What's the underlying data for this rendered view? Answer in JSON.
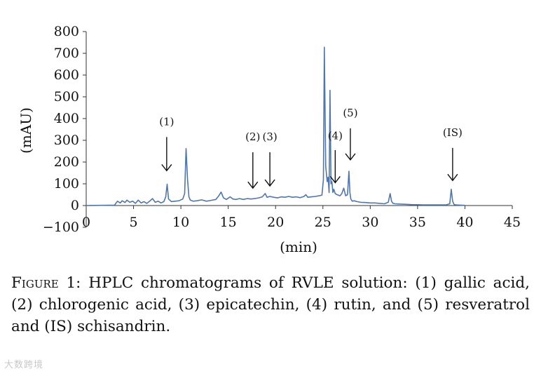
{
  "chart_data": {
    "type": "line",
    "ylabel": "(mAU)",
    "xlabel": "(min)",
    "xlim": [
      0,
      45
    ],
    "ylim": [
      -100,
      800
    ],
    "x_ticks": [
      0,
      5,
      10,
      15,
      20,
      25,
      30,
      35,
      40,
      45
    ],
    "y_ticks": [
      800,
      700,
      600,
      500,
      400,
      300,
      200,
      100,
      0,
      -100
    ],
    "y_tick_labels": [
      "800",
      "700",
      "600",
      "500",
      "400",
      "300",
      "200",
      "100",
      "0",
      "−100"
    ],
    "grid": false,
    "series": [
      {
        "color": "#4f76ad",
        "x": [
          0,
          3.0,
          3.3,
          3.6,
          3.8,
          4.1,
          4.3,
          4.6,
          4.9,
          5.2,
          5.5,
          5.8,
          6.1,
          6.4,
          6.7,
          7.0,
          7.3,
          7.6,
          7.9,
          8.2,
          8.4,
          8.55,
          8.7,
          9.0,
          9.4,
          9.8,
          10.2,
          10.4,
          10.55,
          10.7,
          10.85,
          11.0,
          11.3,
          11.7,
          12.2,
          12.7,
          13.2,
          13.7,
          14.0,
          14.25,
          14.5,
          14.8,
          15.2,
          15.5,
          15.8,
          16.2,
          16.6,
          17.0,
          17.4,
          17.8,
          18.2,
          18.6,
          18.9,
          19.1,
          19.4,
          19.8,
          20.2,
          20.6,
          21.0,
          21.4,
          21.8,
          22.2,
          22.6,
          23.0,
          23.2,
          23.4,
          23.8,
          24.2,
          24.6,
          24.9,
          25.05,
          25.15,
          25.3,
          25.45,
          25.55,
          25.65,
          25.75,
          25.85,
          25.95,
          26.05,
          26.15,
          26.3,
          26.5,
          26.8,
          27.0,
          27.2,
          27.4,
          27.6,
          27.75,
          27.85,
          27.95,
          28.1,
          28.3,
          28.6,
          29.0,
          29.5,
          30.0,
          30.5,
          31.0,
          31.5,
          31.9,
          32.1,
          32.25,
          32.4,
          32.6,
          33.0,
          33.5,
          34.0,
          34.5,
          35.0,
          35.5,
          36.0,
          36.5,
          37.0,
          37.5,
          38.0,
          38.4,
          38.55,
          38.7,
          38.85,
          39.0,
          39.5,
          40.0
        ],
        "y": [
          0,
          2,
          20,
          12,
          22,
          14,
          25,
          15,
          20,
          10,
          25,
          12,
          18,
          10,
          20,
          32,
          15,
          20,
          12,
          18,
          40,
          98,
          30,
          18,
          20,
          22,
          30,
          55,
          262,
          120,
          40,
          25,
          20,
          22,
          26,
          20,
          24,
          28,
          45,
          62,
          35,
          28,
          40,
          30,
          28,
          32,
          28,
          32,
          30,
          32,
          35,
          40,
          55,
          38,
          42,
          38,
          35,
          40,
          38,
          42,
          38,
          40,
          36,
          42,
          50,
          38,
          40,
          42,
          45,
          48,
          120,
          728,
          180,
          110,
          130,
          60,
          530,
          100,
          110,
          60,
          75,
          55,
          50,
          45,
          55,
          80,
          45,
          50,
          158,
          60,
          30,
          20,
          22,
          18,
          15,
          14,
          12,
          12,
          10,
          8,
          15,
          55,
          20,
          10,
          8,
          7,
          6,
          5,
          4,
          4,
          3,
          3,
          3,
          3,
          3,
          3,
          8,
          75,
          20,
          5,
          3,
          2,
          1
        ]
      }
    ],
    "annotations": [
      {
        "label": "(1)",
        "x": 8.5,
        "label_y": 370,
        "arrow_top": 315,
        "arrow_bottom": 160
      },
      {
        "label": "(2)",
        "x": 17.6,
        "label_y": 300,
        "arrow_top": 245,
        "arrow_bottom": 80
      },
      {
        "label": "(3)",
        "x": 19.4,
        "label_y": 300,
        "arrow_top": 245,
        "arrow_bottom": 90
      },
      {
        "label": "(4)",
        "x": 26.3,
        "label_y": 305,
        "arrow_top": 255,
        "arrow_bottom": 105
      },
      {
        "label": "(5)",
        "x": 27.9,
        "label_y": 410,
        "arrow_top": 355,
        "arrow_bottom": 210
      },
      {
        "label": "(IS)",
        "x": 38.7,
        "label_y": 320,
        "arrow_top": 265,
        "arrow_bottom": 115
      }
    ]
  },
  "caption": {
    "figure_label": "Figure 1:",
    "text": " HPLC chromatograms of RVLE solution: (1) gallic acid, (2) chlorogenic acid, (3) epicatechin, (4) rutin, and (5) resveratrol and (IS) schisandrin."
  },
  "watermark": {
    "text": "大数跨境"
  }
}
